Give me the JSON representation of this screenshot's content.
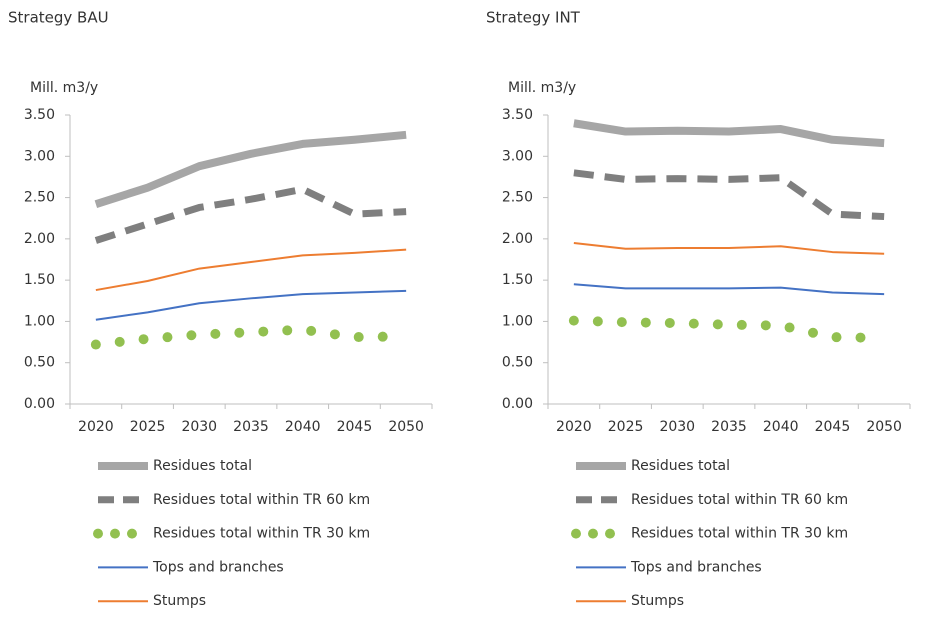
{
  "chart_data": [
    {
      "type": "line",
      "title": "Strategy BAU",
      "y_label": "Mill. m3/y",
      "categories": [
        "2020",
        "2025",
        "2030",
        "2035",
        "2040",
        "2045",
        "2050"
      ],
      "ylim": [
        0,
        3.5
      ],
      "yticks": [
        {
          "value": 0,
          "label": "0.00"
        },
        {
          "value": 0.5,
          "label": "0.50"
        },
        {
          "value": 1,
          "label": "1.00"
        },
        {
          "value": 1.5,
          "label": "1.50"
        },
        {
          "value": 2,
          "label": "2.00"
        },
        {
          "value": 2.5,
          "label": "2.50"
        },
        {
          "value": 3,
          "label": "3.00"
        },
        {
          "value": 3.5,
          "label": "3.50"
        }
      ],
      "series": [
        {
          "name": "Residues total",
          "color": "#a6a6a6",
          "values": [
            2.42,
            2.62,
            2.88,
            3.03,
            3.15,
            3.2,
            3.26
          ]
        },
        {
          "name": "Residues total within TR 60 km",
          "color": "#7f7f7f",
          "values": [
            1.98,
            2.18,
            2.38,
            2.48,
            2.6,
            2.3,
            2.33
          ]
        },
        {
          "name": "Residues total within TR 30 km",
          "color": "#92c050",
          "values": [
            0.72,
            0.79,
            0.84,
            0.87,
            0.9,
            0.81,
            0.82
          ]
        },
        {
          "name": "Tops and branches",
          "color": "#4472c4",
          "values": [
            1.02,
            1.11,
            1.22,
            1.28,
            1.33,
            1.35,
            1.37
          ]
        },
        {
          "name": "Stumps",
          "color": "#ed7d31",
          "values": [
            1.38,
            1.49,
            1.64,
            1.72,
            1.8,
            1.83,
            1.87
          ]
        }
      ]
    },
    {
      "type": "line",
      "title": "Strategy INT",
      "y_label": "Mill. m3/y",
      "categories": [
        "2020",
        "2025",
        "2030",
        "2035",
        "2040",
        "2045",
        "2050"
      ],
      "ylim": [
        0,
        3.5
      ],
      "yticks": [
        {
          "value": 0,
          "label": "0.00"
        },
        {
          "value": 0.5,
          "label": "0.50"
        },
        {
          "value": 1,
          "label": "1.00"
        },
        {
          "value": 1.5,
          "label": "1.50"
        },
        {
          "value": 2,
          "label": "2.00"
        },
        {
          "value": 2.5,
          "label": "2.50"
        },
        {
          "value": 3,
          "label": "3.00"
        },
        {
          "value": 3.5,
          "label": "3.50"
        }
      ],
      "series": [
        {
          "name": "Residues total",
          "color": "#a6a6a6",
          "values": [
            3.4,
            3.3,
            3.31,
            3.3,
            3.33,
            3.2,
            3.16
          ]
        },
        {
          "name": "Residues total within TR 60 km",
          "color": "#7f7f7f",
          "values": [
            2.8,
            2.72,
            2.73,
            2.72,
            2.74,
            2.3,
            2.27
          ]
        },
        {
          "name": "Residues total within TR 30 km",
          "color": "#92c050",
          "values": [
            1.01,
            0.99,
            0.98,
            0.96,
            0.95,
            0.81,
            0.8
          ]
        },
        {
          "name": "Tops and branches",
          "color": "#4472c4",
          "values": [
            1.45,
            1.4,
            1.4,
            1.4,
            1.41,
            1.35,
            1.33
          ]
        },
        {
          "name": "Stumps",
          "color": "#ed7d31",
          "values": [
            1.95,
            1.88,
            1.89,
            1.89,
            1.91,
            1.84,
            1.82
          ]
        }
      ]
    }
  ]
}
